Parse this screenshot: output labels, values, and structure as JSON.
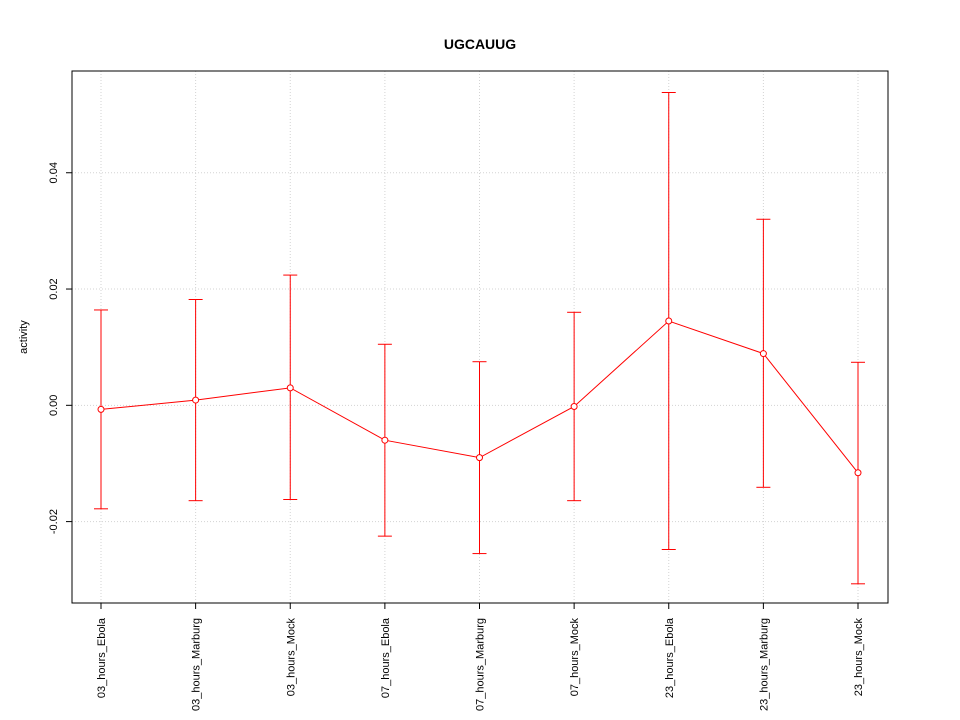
{
  "chart_data": {
    "type": "line",
    "title": "UGCAUUG",
    "xlabel": "",
    "ylabel": "activity",
    "categories": [
      "03_hours_Ebola",
      "03_hours_Marburg",
      "03_hours_Mock",
      "07_hours_Ebola",
      "07_hours_Marburg",
      "07_hours_Mock",
      "23_hours_Ebola",
      "23_hours_Marburg",
      "23_hours_Mock"
    ],
    "values": [
      -0.0007,
      0.0009,
      0.003,
      -0.006,
      -0.009,
      -0.0002,
      0.0145,
      0.0089,
      -0.0116
    ],
    "error_upper": [
      0.0164,
      0.0182,
      0.0224,
      0.0105,
      0.0075,
      0.016,
      0.0538,
      0.032,
      0.0074
    ],
    "error_lower": [
      -0.0178,
      -0.0164,
      -0.0162,
      -0.0225,
      -0.0255,
      -0.0164,
      -0.0248,
      -0.0141,
      -0.0307
    ],
    "ylim": [
      -0.034,
      0.0575
    ],
    "yticks": [
      -0.02,
      0.0,
      0.02,
      0.04
    ],
    "ytick_labels": [
      "-0.02",
      "0.00",
      "0.02",
      "0.04"
    ],
    "grid": true,
    "color": "#ff0000"
  }
}
